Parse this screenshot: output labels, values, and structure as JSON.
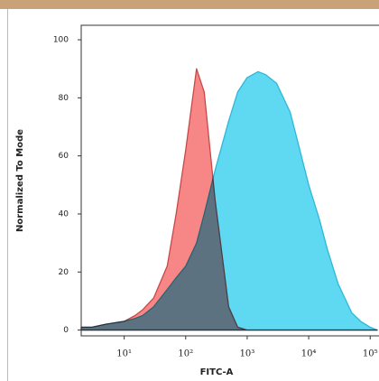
{
  "chart_data": {
    "type": "area",
    "xlabel": "FITC-A",
    "ylabel": "Normalized To Mode",
    "x": [
      2,
      3,
      5,
      10,
      15,
      20,
      30,
      50,
      70,
      100,
      150,
      200,
      300,
      500,
      700,
      1000,
      1500,
      2000,
      3000,
      5000,
      7000,
      10000,
      15000,
      20000,
      30000,
      50000,
      70000,
      100000,
      130000
    ],
    "series": [
      {
        "color": "#5fd8f2",
        "stroke": "#2fb8d6",
        "values": [
          1,
          1,
          2,
          3,
          4,
          5,
          8,
          14,
          18,
          22,
          30,
          40,
          55,
          72,
          82,
          87,
          89,
          88,
          85,
          75,
          63,
          50,
          38,
          28,
          16,
          6,
          3,
          1,
          0
        ]
      },
      {
        "color": "#f78787",
        "stroke": "#c84848",
        "values": [
          1,
          1,
          2,
          3,
          5,
          7,
          11,
          22,
          40,
          62,
          90,
          82,
          45,
          8,
          1,
          0,
          0,
          0,
          0,
          0,
          0,
          0,
          0,
          0,
          0,
          0,
          0,
          0,
          0
        ]
      }
    ],
    "xlog": true,
    "xlim": [
      2,
      130000
    ],
    "xticks": [
      {
        "value": 10,
        "label": "10¹"
      },
      {
        "value": 100,
        "label": "10²"
      },
      {
        "value": 1000,
        "label": "10³"
      },
      {
        "value": 10000,
        "label": "10⁴"
      },
      {
        "value": 100000,
        "label": "10⁵"
      }
    ],
    "ylim": [
      -2,
      105
    ],
    "yticks": [
      0,
      20,
      40,
      60,
      80,
      100
    ]
  }
}
